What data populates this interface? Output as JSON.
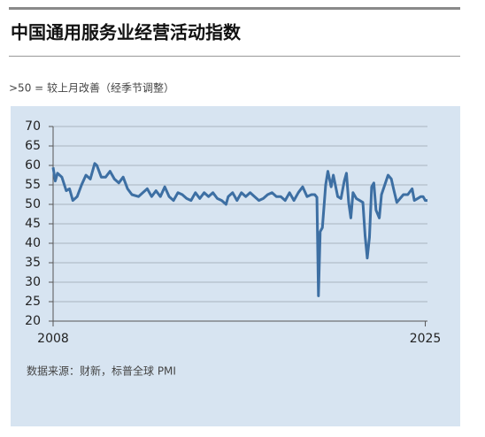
{
  "chart_data": {
    "type": "line",
    "title": "中国通用服务业经营活动指数",
    "subtitle": ">50 = 较上月改善（经季节调整）",
    "source": "数据来源：财新，标普全球 PMI",
    "color": "#3d6fa3",
    "grid": true,
    "xlim": [
      2008,
      2025.1
    ],
    "xticks": [
      2008,
      2025
    ],
    "ylim": [
      20,
      70
    ],
    "yticks": [
      20,
      25,
      30,
      35,
      40,
      45,
      50,
      55,
      60,
      65,
      70
    ],
    "x": [
      2008.0,
      2008.1,
      2008.2,
      2008.4,
      2008.6,
      2008.75,
      2008.9,
      2009.1,
      2009.3,
      2009.5,
      2009.7,
      2009.9,
      2010.0,
      2010.2,
      2010.4,
      2010.6,
      2010.8,
      2011.0,
      2011.2,
      2011.4,
      2011.6,
      2011.9,
      2012.1,
      2012.3,
      2012.5,
      2012.7,
      2012.9,
      2013.1,
      2013.3,
      2013.5,
      2013.7,
      2013.9,
      2014.1,
      2014.3,
      2014.5,
      2014.7,
      2014.9,
      2015.1,
      2015.3,
      2015.5,
      2015.7,
      2015.9,
      2016.0,
      2016.2,
      2016.4,
      2016.6,
      2016.8,
      2017.0,
      2017.2,
      2017.4,
      2017.6,
      2017.8,
      2018.0,
      2018.2,
      2018.4,
      2018.6,
      2018.8,
      2019.0,
      2019.2,
      2019.4,
      2019.6,
      2019.8,
      2019.95,
      2020.05,
      2020.12,
      2020.2,
      2020.3,
      2020.45,
      2020.55,
      2020.7,
      2020.8,
      2021.0,
      2021.15,
      2021.3,
      2021.4,
      2021.5,
      2021.6,
      2021.7,
      2021.85,
      2022.0,
      2022.15,
      2022.25,
      2022.35,
      2022.45,
      2022.55,
      2022.65,
      2022.75,
      2022.9,
      2023.0,
      2023.15,
      2023.3,
      2023.45,
      2023.55,
      2023.7,
      2023.85,
      2024.0,
      2024.2,
      2024.4,
      2024.5,
      2024.65,
      2024.8,
      2024.9,
      2025.0,
      2025.1
    ],
    "values": [
      59.5,
      56,
      58,
      57,
      53.5,
      54,
      51,
      52,
      55,
      57.5,
      56.5,
      60.5,
      60,
      57,
      57,
      58.5,
      56.5,
      55.5,
      57,
      54,
      52.5,
      52,
      53,
      54,
      52,
      53.5,
      52,
      54.5,
      52,
      51,
      53,
      52.5,
      51.5,
      51,
      53,
      51.5,
      53,
      52,
      53,
      51.5,
      51,
      50,
      52,
      53,
      51,
      53,
      52,
      53,
      52,
      51,
      51.5,
      52.5,
      53,
      52,
      52,
      51,
      53,
      51,
      53,
      54.5,
      52,
      52.5,
      52.5,
      51.8,
      26.5,
      43,
      44,
      55,
      58.5,
      54.5,
      57.5,
      52,
      51.5,
      56,
      58,
      50.5,
      46.5,
      53,
      51.5,
      51,
      50.5,
      42,
      36.2,
      41.5,
      54.5,
      55.5,
      48.5,
      46.5,
      52.5,
      55,
      57.5,
      56.5,
      54,
      50.5,
      51.5,
      52.5,
      52.5,
      54,
      51,
      51.5,
      52,
      52,
      51,
      51
    ]
  }
}
